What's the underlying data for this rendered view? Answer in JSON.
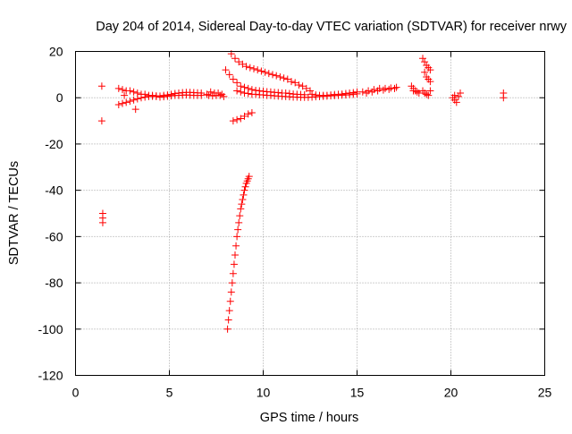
{
  "chart_data": {
    "type": "scatter",
    "title": "Day 204 of 2014, Sidereal Day-to-day VTEC variation (SDTVAR) for receiver nrwy",
    "xlabel": "GPS time / hours",
    "ylabel": "SDTVAR / TECUs",
    "xlim": [
      0,
      25
    ],
    "ylim": [
      -120,
      20
    ],
    "xticks": [
      0,
      5,
      10,
      15,
      20,
      25
    ],
    "yticks": [
      -120,
      -100,
      -80,
      -60,
      -40,
      -20,
      0,
      20
    ],
    "xtick_labels": [
      "0",
      "5",
      "10",
      "15",
      "20",
      "25"
    ],
    "ytick_labels": [
      "-120",
      "-100",
      "-80",
      "-60",
      "-40",
      "-20",
      "0",
      "20"
    ],
    "grid": true,
    "legend": "none",
    "marker": "plus",
    "color": "#ff0000",
    "series": [
      {
        "points": [
          [
            1.4,
            5
          ],
          [
            1.4,
            -10
          ],
          [
            1.45,
            -50
          ],
          [
            1.45,
            -52
          ],
          [
            1.45,
            -54
          ],
          [
            2.3,
            4
          ],
          [
            2.5,
            3.5
          ],
          [
            2.7,
            3
          ],
          [
            2.9,
            3
          ],
          [
            3.1,
            2.5
          ],
          [
            3.3,
            2
          ],
          [
            3.5,
            1.5
          ],
          [
            3.7,
            1.5
          ],
          [
            3.9,
            1
          ],
          [
            4.1,
            1
          ],
          [
            4.3,
            0.8
          ],
          [
            4.5,
            0.7
          ],
          [
            4.7,
            1
          ],
          [
            4.9,
            1.2
          ],
          [
            5.1,
            1.5
          ],
          [
            5.3,
            1.8
          ],
          [
            5.5,
            2
          ],
          [
            5.7,
            2.2
          ],
          [
            5.9,
            2.3
          ],
          [
            6.1,
            2.3
          ],
          [
            6.3,
            2.2
          ],
          [
            6.5,
            2.1
          ],
          [
            6.7,
            2
          ],
          [
            2.3,
            -3
          ],
          [
            2.5,
            -2.5
          ],
          [
            2.7,
            -2
          ],
          [
            2.9,
            -1.5
          ],
          [
            3.1,
            -1
          ],
          [
            3.3,
            -0.5
          ],
          [
            3.5,
            0
          ],
          [
            3.7,
            0.3
          ],
          [
            3.9,
            0.5
          ],
          [
            4.1,
            0.6
          ],
          [
            4.3,
            0.5
          ],
          [
            4.5,
            0.3
          ],
          [
            4.7,
            0.4
          ],
          [
            4.9,
            0.6
          ],
          [
            5.1,
            0.8
          ],
          [
            5.3,
            1
          ],
          [
            5.5,
            1
          ],
          [
            5.7,
            1.1
          ],
          [
            5.9,
            1.2
          ],
          [
            6.1,
            1.1
          ],
          [
            6.3,
            1
          ],
          [
            6.5,
            1
          ],
          [
            6.7,
            1
          ],
          [
            3.2,
            -5
          ],
          [
            2.6,
            1
          ],
          [
            7.0,
            1.5
          ],
          [
            7.1,
            1
          ],
          [
            7.3,
            0.8
          ],
          [
            7.5,
            1
          ],
          [
            7.7,
            1
          ],
          [
            7.9,
            0.5
          ],
          [
            7.2,
            2.5
          ],
          [
            7.4,
            2
          ],
          [
            7.6,
            2
          ],
          [
            7.8,
            1.5
          ],
          [
            8.3,
            19
          ],
          [
            8.5,
            17
          ],
          [
            8.7,
            15.5
          ],
          [
            8.9,
            14.5
          ],
          [
            9.1,
            13.5
          ],
          [
            9.3,
            13
          ],
          [
            9.5,
            12.5
          ],
          [
            9.7,
            12
          ],
          [
            9.9,
            11.5
          ],
          [
            10.1,
            11
          ],
          [
            10.3,
            10.5
          ],
          [
            10.5,
            10
          ],
          [
            10.7,
            9.5
          ],
          [
            10.9,
            9
          ],
          [
            11.1,
            8.5
          ],
          [
            11.3,
            8
          ],
          [
            11.5,
            7
          ],
          [
            11.7,
            6.5
          ],
          [
            11.9,
            5.5
          ],
          [
            12.1,
            5
          ],
          [
            12.3,
            4
          ],
          [
            12.5,
            3
          ],
          [
            8.0,
            12
          ],
          [
            8.2,
            10
          ],
          [
            8.4,
            8
          ],
          [
            8.6,
            6.5
          ],
          [
            8.8,
            5
          ],
          [
            9.0,
            4.5
          ],
          [
            9.2,
            4
          ],
          [
            9.4,
            3.5
          ],
          [
            9.6,
            3.2
          ],
          [
            9.8,
            3
          ],
          [
            10.0,
            2.8
          ],
          [
            10.2,
            2.6
          ],
          [
            10.4,
            2.5
          ],
          [
            10.6,
            2.3
          ],
          [
            10.8,
            2.2
          ],
          [
            11.0,
            2
          ],
          [
            11.2,
            2
          ],
          [
            11.4,
            1.8
          ],
          [
            11.6,
            1.6
          ],
          [
            11.8,
            1.5
          ],
          [
            12.0,
            1.4
          ],
          [
            12.2,
            1.3
          ],
          [
            8.6,
            3
          ],
          [
            8.8,
            2.5
          ],
          [
            9.0,
            2
          ],
          [
            9.2,
            1.8
          ],
          [
            9.4,
            1.5
          ],
          [
            9.6,
            1.5
          ],
          [
            9.8,
            1.3
          ],
          [
            10.0,
            1.2
          ],
          [
            10.2,
            1
          ],
          [
            10.4,
            1
          ],
          [
            10.6,
            0.8
          ],
          [
            10.8,
            0.7
          ],
          [
            11.0,
            0.6
          ],
          [
            11.2,
            0.5
          ],
          [
            11.4,
            0.4
          ],
          [
            11.6,
            0.3
          ],
          [
            11.8,
            0.3
          ],
          [
            12.0,
            0.2
          ],
          [
            12.2,
            0.2
          ],
          [
            12.4,
            0.2
          ],
          [
            12.6,
            0.3
          ],
          [
            12.8,
            0.4
          ],
          [
            13.0,
            0.5
          ],
          [
            13.2,
            0.6
          ],
          [
            13.4,
            0.7
          ],
          [
            13.6,
            0.8
          ],
          [
            13.8,
            0.9
          ],
          [
            14.0,
            1
          ],
          [
            14.2,
            1.1
          ],
          [
            14.4,
            1.2
          ],
          [
            14.6,
            1.3
          ],
          [
            14.8,
            1.5
          ],
          [
            15.0,
            1.7
          ],
          [
            12.6,
            1.5
          ],
          [
            12.8,
            1.2
          ],
          [
            13.0,
            1
          ],
          [
            13.2,
            1
          ],
          [
            13.4,
            1
          ],
          [
            13.6,
            1.2
          ],
          [
            13.8,
            1.4
          ],
          [
            14.0,
            1.5
          ],
          [
            14.2,
            1.6
          ],
          [
            14.4,
            1.8
          ],
          [
            14.6,
            2
          ],
          [
            14.8,
            2.2
          ],
          [
            15.0,
            2.5
          ],
          [
            8.4,
            -10
          ],
          [
            8.6,
            -9.5
          ],
          [
            8.8,
            -9
          ],
          [
            9.0,
            -8
          ],
          [
            9.2,
            -7
          ],
          [
            9.4,
            -6.5
          ],
          [
            8.1,
            -100
          ],
          [
            8.15,
            -96
          ],
          [
            8.2,
            -92
          ],
          [
            8.25,
            -88
          ],
          [
            8.3,
            -84
          ],
          [
            8.35,
            -80
          ],
          [
            8.4,
            -76
          ],
          [
            8.45,
            -72
          ],
          [
            8.5,
            -68
          ],
          [
            8.55,
            -64
          ],
          [
            8.6,
            -60
          ],
          [
            8.65,
            -57
          ],
          [
            8.7,
            -54
          ],
          [
            8.75,
            -51
          ],
          [
            8.8,
            -48
          ],
          [
            8.85,
            -46
          ],
          [
            8.9,
            -44
          ],
          [
            8.95,
            -42
          ],
          [
            9.0,
            -40
          ],
          [
            9.05,
            -38.5
          ],
          [
            9.1,
            -37
          ],
          [
            9.15,
            -36
          ],
          [
            9.2,
            -35
          ],
          [
            9.25,
            -34
          ],
          [
            15.3,
            2.5
          ],
          [
            15.6,
            3
          ],
          [
            15.9,
            3.5
          ],
          [
            16.2,
            4
          ],
          [
            16.5,
            4
          ],
          [
            16.8,
            4.2
          ],
          [
            17.1,
            4.5
          ],
          [
            15.5,
            2
          ],
          [
            15.8,
            2.5
          ],
          [
            16.1,
            3
          ],
          [
            16.4,
            3.3
          ],
          [
            16.7,
            3.6
          ],
          [
            17.0,
            4
          ],
          [
            17.9,
            5
          ],
          [
            18.0,
            4
          ],
          [
            18.1,
            3
          ],
          [
            18.2,
            2.5
          ],
          [
            18.3,
            2
          ],
          [
            18.0,
            3
          ],
          [
            18.5,
            17
          ],
          [
            18.6,
            15.5
          ],
          [
            18.7,
            14
          ],
          [
            18.8,
            13
          ],
          [
            18.9,
            12
          ],
          [
            18.6,
            11
          ],
          [
            18.7,
            9
          ],
          [
            18.8,
            8
          ],
          [
            18.9,
            7
          ],
          [
            18.5,
            3
          ],
          [
            18.6,
            2
          ],
          [
            18.7,
            1.5
          ],
          [
            18.8,
            1
          ],
          [
            18.9,
            3
          ],
          [
            20.1,
            0
          ],
          [
            20.2,
            -1
          ],
          [
            20.3,
            -2
          ],
          [
            20.2,
            1
          ],
          [
            20.4,
            0.5
          ],
          [
            20.5,
            2
          ],
          [
            22.8,
            2
          ],
          [
            22.8,
            0
          ]
        ]
      }
    ]
  }
}
